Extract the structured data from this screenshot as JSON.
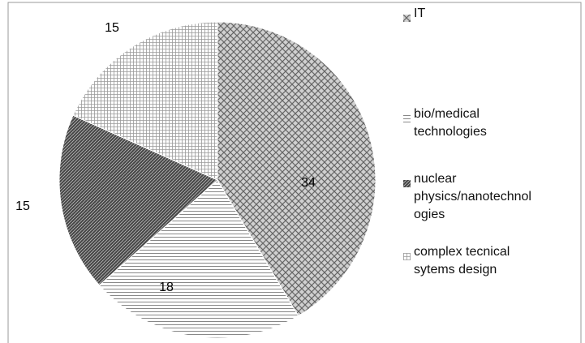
{
  "chart_data": {
    "type": "pie",
    "categories": [
      "IT",
      "bio/medical technologies",
      "nuclear physics/nanotechnologies",
      "complex tecnical sytems design"
    ],
    "values": [
      34,
      18,
      15,
      15
    ],
    "legend": "right"
  }
}
